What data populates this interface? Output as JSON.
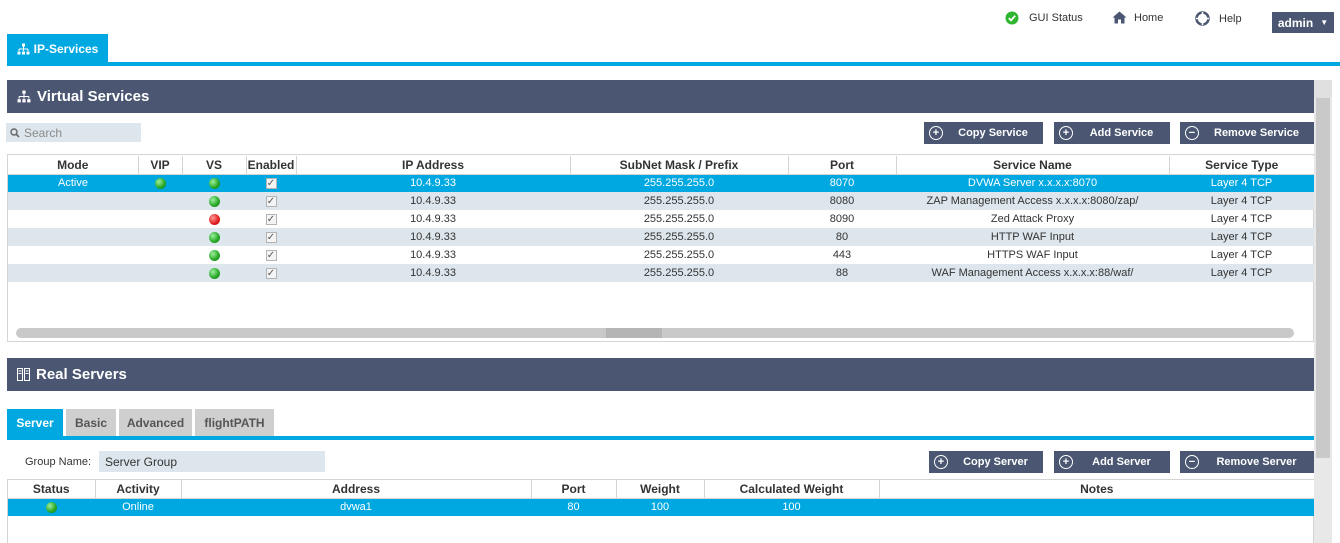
{
  "topnav": {
    "gui_status": "GUI Status",
    "home": "Home",
    "help": "Help",
    "user": "admin"
  },
  "main_tab": {
    "label": "IP-Services"
  },
  "virtual_services": {
    "title": "Virtual Services",
    "search_placeholder": "Search",
    "buttons": {
      "copy": "Copy Service",
      "add": "Add Service",
      "remove": "Remove Service"
    },
    "columns": [
      "Mode",
      "VIP",
      "VS",
      "Enabled",
      "IP Address",
      "SubNet Mask / Prefix",
      "Port",
      "Service Name",
      "Service Type"
    ],
    "rows": [
      {
        "mode": "Active",
        "vip": "green",
        "vs": "green",
        "enabled": true,
        "ip": "10.4.9.33",
        "mask": "255.255.255.0",
        "port": "8070",
        "name": "DVWA Server x.x.x.x:8070",
        "type": "Layer 4 TCP",
        "selected": true
      },
      {
        "mode": "",
        "vip": "",
        "vs": "green",
        "enabled": true,
        "ip": "10.4.9.33",
        "mask": "255.255.255.0",
        "port": "8080",
        "name": "ZAP Management Access x.x.x.x:8080/zap/",
        "type": "Layer 4 TCP",
        "selected": false
      },
      {
        "mode": "",
        "vip": "",
        "vs": "red",
        "enabled": true,
        "ip": "10.4.9.33",
        "mask": "255.255.255.0",
        "port": "8090",
        "name": "Zed Attack Proxy",
        "type": "Layer 4 TCP",
        "selected": false
      },
      {
        "mode": "",
        "vip": "",
        "vs": "green",
        "enabled": true,
        "ip": "10.4.9.33",
        "mask": "255.255.255.0",
        "port": "80",
        "name": "HTTP WAF Input",
        "type": "Layer 4 TCP",
        "selected": false
      },
      {
        "mode": "",
        "vip": "",
        "vs": "green",
        "enabled": true,
        "ip": "10.4.9.33",
        "mask": "255.255.255.0",
        "port": "443",
        "name": "HTTPS WAF Input",
        "type": "Layer 4 TCP",
        "selected": false
      },
      {
        "mode": "",
        "vip": "",
        "vs": "green",
        "enabled": true,
        "ip": "10.4.9.33",
        "mask": "255.255.255.0",
        "port": "88",
        "name": "WAF Management Access x.x.x.x:88/waf/",
        "type": "Layer 4 TCP",
        "selected": false
      }
    ]
  },
  "real_servers": {
    "title": "Real Servers",
    "tabs": [
      "Server",
      "Basic",
      "Advanced",
      "flightPATH"
    ],
    "active_tab": "Server",
    "group_name_label": "Group Name:",
    "group_name_value": "Server Group",
    "buttons": {
      "copy": "Copy Server",
      "add": "Add Server",
      "remove": "Remove Server"
    },
    "columns": [
      "Status",
      "Activity",
      "Address",
      "Port",
      "Weight",
      "Calculated Weight",
      "Notes"
    ],
    "rows": [
      {
        "status": "green",
        "activity": "Online",
        "address": "dvwa1",
        "port": "80",
        "weight": "100",
        "calculated_weight": "100",
        "notes": ""
      }
    ]
  },
  "colors": {
    "accent": "#00a8e2",
    "header": "#4a5672",
    "alt_row": "#dce6ec",
    "ok": "#23a523",
    "error": "#e01c1c"
  }
}
